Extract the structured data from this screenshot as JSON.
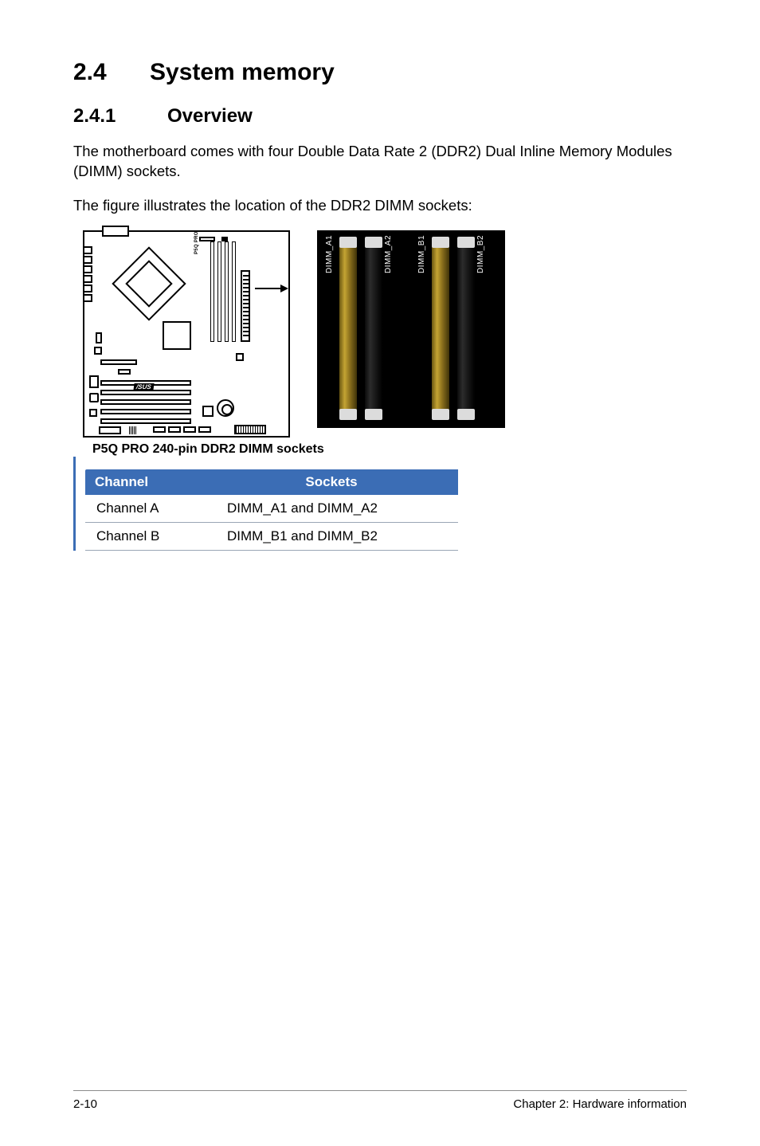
{
  "section": {
    "number": "2.4",
    "title": "System memory"
  },
  "subsection": {
    "number": "2.4.1",
    "title": "Overview"
  },
  "paragraphs": {
    "p1": "The motherboard comes with four Double Data Rate 2 (DDR2) Dual Inline Memory Modules (DIMM) sockets.",
    "p2": "The figure illustrates the location of the DDR2 DIMM sockets:"
  },
  "diagram": {
    "brand_text": "P5Q PRO",
    "asus_text": "/SUS",
    "dimm_labels": {
      "a1": "DIMM_A1",
      "a2": "DIMM_A2",
      "b1": "DIMM_B1",
      "b2": "DIMM_B2"
    },
    "caption": "P5Q PRO 240-pin DDR2 DIMM sockets",
    "colors": {
      "photo_bg": "#000000",
      "yellow_slot_gradient": [
        "#6a5612",
        "#c4a433",
        "#8a6f1c",
        "#3f3309"
      ],
      "black_slot_gradient": [
        "#0a0a0a",
        "#2c2c2c",
        "#121212",
        "#000000"
      ],
      "clip": "#dcdcdc"
    }
  },
  "table": {
    "headers": {
      "col1": "Channel",
      "col2": "Sockets"
    },
    "rows": [
      {
        "channel": "Channel A",
        "sockets": "DIMM_A1 and DIMM_A2"
      },
      {
        "channel": "Channel B",
        "sockets": "DIMM_B1 and DIMM_B2"
      }
    ],
    "colors": {
      "header_bg": "#3b6db5",
      "header_text": "#ffffff",
      "row_border": "#9aa6b5",
      "left_border": "#3b6db5"
    }
  },
  "footer": {
    "left": "2-10",
    "right": "Chapter 2: Hardware information"
  }
}
